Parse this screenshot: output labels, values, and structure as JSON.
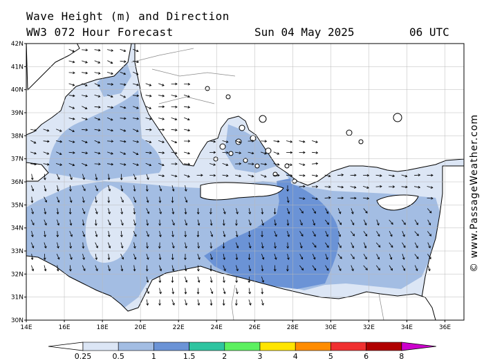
{
  "header": {
    "title_line1": "Wave Height (m) and Direction",
    "title_line2": "WW3 072 Hour Forecast",
    "date": "Sun 04 May 2025",
    "time": "06 UTC"
  },
  "credit": "© www.PassageWeather.com",
  "map": {
    "lon_range": [
      14,
      37
    ],
    "lat_range": [
      30,
      42
    ],
    "lon_ticks": [
      "14E",
      "16E",
      "18E",
      "20E",
      "22E",
      "24E",
      "26E",
      "28E",
      "30E",
      "32E",
      "34E",
      "36E"
    ],
    "lat_ticks": [
      "30N",
      "31N",
      "32N",
      "33N",
      "34N",
      "35N",
      "36N",
      "37N",
      "38N",
      "39N",
      "40N",
      "41N",
      "42N"
    ]
  },
  "colorbar": {
    "labels": [
      "0.25",
      "0.5",
      "1",
      "1.5",
      "2",
      "3",
      "4",
      "5",
      "6",
      "8"
    ],
    "colors": [
      "#ffffff",
      "#dce6f5",
      "#a3bde3",
      "#6b93d6",
      "#2ec4a0",
      "#5cf060",
      "#ffe500",
      "#ff8c00",
      "#f03030",
      "#b00000",
      "#cc00cc"
    ]
  }
}
